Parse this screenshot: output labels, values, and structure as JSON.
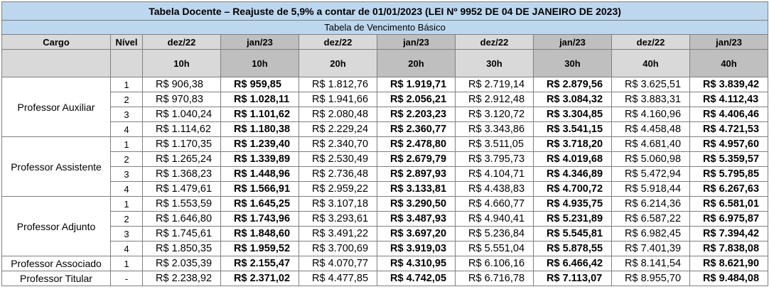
{
  "title": "Tabela Docente – Reajuste de 5,9% a contar de 01/01/2023 (LEI Nº 9952 DE 04 DE JANEIRO DE 2023)",
  "subtitle": "Tabela de Vencimento Básico",
  "headers": {
    "cargo": "Cargo",
    "nivel": "Nível",
    "months": [
      "dez/22",
      "jan/23",
      "dez/22",
      "jan/23",
      "dez/22",
      "jan/23",
      "dez/22",
      "jan/23"
    ],
    "hours": [
      "10h",
      "10h",
      "20h",
      "20h",
      "30h",
      "30h",
      "40h",
      "40h"
    ]
  },
  "groups": [
    {
      "cargo": "Professor Auxiliar",
      "rows": [
        {
          "nivel": "1",
          "values": [
            "R$ 906,38",
            "R$ 959,85",
            "R$ 1.812,76",
            "R$ 1.919,71",
            "R$ 2.719,14",
            "R$ 2.879,56",
            "R$ 3.625,51",
            "R$ 3.839,42"
          ]
        },
        {
          "nivel": "2",
          "values": [
            "R$ 970,83",
            "R$ 1.028,11",
            "R$ 1.941,66",
            "R$ 2.056,21",
            "R$ 2.912,48",
            "R$ 3.084,32",
            "R$ 3.883,31",
            "R$ 4.112,43"
          ]
        },
        {
          "nivel": "3",
          "values": [
            "R$ 1.040,24",
            "R$ 1.101,62",
            "R$ 2.080,48",
            "R$ 2.203,23",
            "R$ 3.120,72",
            "R$ 3.304,85",
            "R$ 4.160,96",
            "R$ 4.406,46"
          ]
        },
        {
          "nivel": "4",
          "values": [
            "R$ 1.114,62",
            "R$ 1.180,38",
            "R$ 2.229,24",
            "R$ 2.360,77",
            "R$ 3.343,86",
            "R$ 3.541,15",
            "R$ 4.458,48",
            "R$ 4.721,53"
          ]
        }
      ]
    },
    {
      "cargo": "Professor Assistente",
      "rows": [
        {
          "nivel": "1",
          "values": [
            "R$ 1.170,35",
            "R$ 1.239,40",
            "R$ 2.340,70",
            "R$ 2.478,80",
            "R$ 3.511,05",
            "R$ 3.718,20",
            "R$ 4.681,40",
            "R$ 4.957,60"
          ]
        },
        {
          "nivel": "2",
          "values": [
            "R$ 1.265,24",
            "R$ 1.339,89",
            "R$ 2.530,49",
            "R$ 2.679,79",
            "R$ 3.795,73",
            "R$ 4.019,68",
            "R$ 5.060,98",
            "R$ 5.359,57"
          ]
        },
        {
          "nivel": "3",
          "values": [
            "R$ 1.368,23",
            "R$ 1.448,96",
            "R$ 2.736,48",
            "R$ 2.897,93",
            "R$ 4.104,71",
            "R$ 4.346,89",
            "R$ 5.472,94",
            "R$ 5.795,85"
          ]
        },
        {
          "nivel": "4",
          "values": [
            "R$ 1.479,61",
            "R$ 1.566,91",
            "R$ 2.959,22",
            "R$ 3.133,81",
            "R$ 4.438,83",
            "R$ 4.700,72",
            "R$ 5.918,44",
            "R$ 6.267,63"
          ]
        }
      ]
    },
    {
      "cargo": "Professor Adjunto",
      "rows": [
        {
          "nivel": "1",
          "values": [
            "R$ 1.553,59",
            "R$ 1.645,25",
            "R$ 3.107,18",
            "R$ 3.290,50",
            "R$ 4.660,77",
            "R$ 4.935,75",
            "R$ 6.214,36",
            "R$ 6.581,01"
          ]
        },
        {
          "nivel": "2",
          "values": [
            "R$ 1.646,80",
            "R$ 1.743,96",
            "R$ 3.293,61",
            "R$ 3.487,93",
            "R$ 4.940,41",
            "R$ 5.231,89",
            "R$ 6.587,22",
            "R$ 6.975,87"
          ]
        },
        {
          "nivel": "3",
          "values": [
            "R$ 1.745,61",
            "R$ 1.848,60",
            "R$ 3.491,22",
            "R$ 3.697,20",
            "R$ 5.236,84",
            "R$ 5.545,81",
            "R$ 6.982,45",
            "R$ 7.394,42"
          ]
        },
        {
          "nivel": "4",
          "values": [
            "R$ 1.850,35",
            "R$ 1.959,52",
            "R$ 3.700,69",
            "R$ 3.919,03",
            "R$ 5.551,04",
            "R$ 5.878,55",
            "R$ 7.401,39",
            "R$ 7.838,08"
          ]
        }
      ]
    },
    {
      "cargo": "Professor Associado",
      "rows": [
        {
          "nivel": "1",
          "values": [
            "R$ 2.035,39",
            "R$ 2.155,47",
            "R$ 4.070,77",
            "R$ 4.310,95",
            "R$ 6.106,16",
            "R$ 6.466,42",
            "R$ 8.141,54",
            "R$ 8.621,90"
          ]
        }
      ]
    },
    {
      "cargo": "Professor Titular",
      "rows": [
        {
          "nivel": "-",
          "values": [
            "R$ 2.238,92",
            "R$ 2.371,02",
            "R$ 4.477,85",
            "R$ 4.742,05",
            "R$ 6.716,78",
            "R$ 7.113,07",
            "R$ 8.955,70",
            "R$ 9.484,08"
          ]
        }
      ]
    }
  ]
}
